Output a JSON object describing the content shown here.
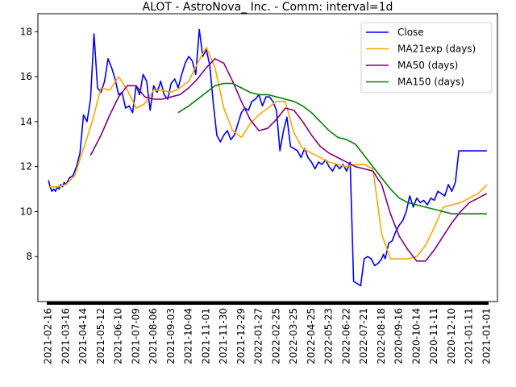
{
  "chart_data": {
    "type": "line",
    "title": "ALOT - AstroNova_ Inc. - Comm: interval=1d",
    "xlabel": "",
    "ylabel": "",
    "ylim": [
      6.0,
      18.8
    ],
    "yticks": [
      8,
      10,
      12,
      14,
      16,
      18
    ],
    "grid": false,
    "legend_position": "top-right",
    "x_labels": [
      "2021-02-16",
      "2021-03-16",
      "2021-04-14",
      "2021-05-12",
      "2021-06-10",
      "2021-07-09",
      "2021-08-06",
      "2021-09-03",
      "2021-10-04",
      "2021-11-01",
      "2021-11-30",
      "2021-12-29",
      "2022-01-27",
      "2022-02-25",
      "2022-03-25",
      "2022-04-25",
      "2022-05-23",
      "2022-06-22",
      "2022-07-21",
      "2022-08-18",
      "2020-09-16",
      "2020-10-14",
      "2020-11-11",
      "2020-12-10",
      "2021-01-11",
      "2021-01-01"
    ],
    "xlim": [
      -0.6,
      25.6
    ],
    "series": [
      {
        "name": "Close",
        "color": "#0000ff",
        "x": [
          0,
          0.1,
          0.2,
          0.3,
          0.4,
          0.5,
          0.6,
          0.7,
          0.8,
          0.9,
          1.0,
          1.2,
          1.4,
          1.6,
          1.8,
          2.0,
          2.2,
          2.4,
          2.6,
          2.8,
          3.0,
          3.2,
          3.4,
          3.6,
          3.8,
          4.0,
          4.2,
          4.4,
          4.6,
          4.8,
          5.0,
          5.2,
          5.4,
          5.6,
          5.8,
          6.0,
          6.2,
          6.4,
          6.6,
          6.8,
          7.0,
          7.2,
          7.4,
          7.6,
          7.8,
          8.0,
          8.2,
          8.4,
          8.6,
          8.8,
          9.0,
          9.2,
          9.4,
          9.6,
          9.8,
          10.0,
          10.2,
          10.4,
          10.6,
          10.8,
          11.0,
          11.2,
          11.4,
          11.6,
          11.8,
          12.0,
          12.2,
          12.4,
          12.6,
          12.8,
          13.0,
          13.2,
          13.4,
          13.6,
          13.8,
          14.0,
          14.2,
          14.4,
          14.6,
          14.8,
          15.0,
          15.2,
          15.4,
          15.6,
          15.8,
          16.0,
          16.2,
          16.4,
          16.6,
          16.8,
          17.0,
          17.2,
          17.4,
          17.6,
          17.8,
          18.0,
          18.2,
          18.4,
          18.6,
          18.8,
          19.0,
          19.1,
          19.2,
          19.4,
          19.6,
          19.8,
          20.0,
          20.2,
          20.4,
          20.6,
          20.8,
          21.0,
          21.2,
          21.4,
          21.6,
          21.8,
          22.0,
          22.2,
          22.4,
          22.6,
          22.8,
          23.0,
          23.2,
          23.4,
          23.6,
          23.8,
          24.0,
          24.2,
          24.4,
          24.6,
          24.8,
          25.0
        ],
        "y": [
          11.4,
          11.1,
          10.9,
          11.0,
          10.9,
          11.1,
          11.0,
          11.2,
          11.1,
          11.3,
          11.2,
          11.5,
          11.6,
          12.0,
          12.6,
          14.3,
          14.0,
          15.0,
          17.9,
          15.5,
          15.3,
          15.8,
          16.8,
          16.4,
          15.9,
          15.2,
          15.3,
          14.6,
          14.7,
          14.4,
          15.6,
          15.2,
          16.1,
          15.8,
          14.5,
          15.6,
          15.3,
          15.8,
          15.2,
          15.0,
          15.7,
          15.9,
          15.5,
          16.1,
          16.6,
          16.9,
          16.7,
          16.1,
          18.1,
          16.9,
          17.2,
          16.5,
          14.8,
          13.4,
          13.1,
          13.4,
          13.6,
          13.2,
          13.4,
          13.9,
          14.4,
          14.6,
          14.5,
          14.9,
          15.0,
          15.2,
          14.7,
          15.1,
          15.1,
          14.9,
          14.5,
          12.7,
          13.6,
          14.2,
          12.9,
          12.8,
          12.7,
          12.4,
          12.8,
          12.4,
          12.2,
          11.9,
          12.2,
          12.1,
          12.3,
          12.0,
          11.8,
          12.1,
          11.9,
          12.1,
          11.8,
          12.2,
          6.9,
          6.8,
          6.7,
          7.9,
          8.0,
          7.9,
          7.6,
          7.7,
          7.9,
          8.1,
          7.9,
          8.6,
          8.7,
          9.1,
          9.4,
          9.6,
          10.0,
          10.7,
          10.2,
          10.6,
          10.4,
          10.5,
          10.3,
          10.6,
          10.5,
          10.9,
          10.8,
          10.7,
          11.2,
          10.9,
          11.3,
          12.7,
          12.7,
          12.7,
          12.7,
          12.7,
          12.7,
          12.7,
          12.7,
          12.7
        ]
      },
      {
        "name": "MA21exp (days)",
        "color": "#ffa500",
        "x": [
          0,
          0.5,
          1.0,
          1.5,
          2.0,
          2.5,
          3.0,
          3.5,
          4.0,
          4.5,
          5.0,
          5.5,
          6.0,
          6.5,
          7.0,
          7.5,
          8.0,
          8.5,
          9.0,
          9.5,
          10.0,
          10.5,
          11.0,
          11.5,
          12.0,
          12.5,
          13.0,
          13.5,
          14.0,
          14.5,
          15.0,
          15.5,
          16.0,
          16.5,
          17.0,
          17.5,
          18.0,
          18.5,
          19.0,
          19.5,
          20.0,
          20.5,
          21.0,
          21.5,
          22.0,
          22.5,
          23.0,
          23.5,
          24.0,
          24.5,
          25.0
        ],
        "y": [
          11.1,
          11.1,
          11.2,
          11.6,
          12.8,
          14.0,
          15.5,
          15.4,
          16.0,
          15.4,
          14.6,
          14.8,
          15.4,
          15.4,
          15.3,
          15.5,
          15.8,
          16.6,
          17.3,
          16.4,
          14.6,
          13.6,
          13.3,
          13.9,
          14.3,
          14.6,
          14.9,
          14.9,
          13.5,
          12.8,
          12.6,
          12.4,
          12.2,
          12.1,
          12.0,
          12.1,
          12.1,
          11.9,
          9.0,
          7.9,
          7.9,
          7.9,
          8.0,
          8.5,
          9.3,
          10.2,
          10.3,
          10.4,
          10.6,
          10.8,
          11.2
        ]
      },
      {
        "name": "MA50 (days)",
        "color": "#800080",
        "x": [
          2.4,
          3.0,
          3.5,
          4.0,
          4.5,
          5.0,
          5.5,
          6.0,
          6.5,
          7.0,
          7.5,
          8.0,
          8.5,
          9.0,
          9.5,
          10.0,
          10.5,
          11.0,
          11.5,
          12.0,
          12.5,
          13.0,
          13.5,
          14.0,
          14.5,
          15.0,
          15.5,
          16.0,
          16.5,
          17.0,
          17.5,
          18.0,
          18.5,
          19.0,
          19.5,
          20.0,
          20.5,
          21.0,
          21.5,
          22.0,
          22.5,
          23.0,
          23.5,
          24.0,
          24.5,
          25.0
        ],
        "y": [
          12.5,
          13.4,
          14.3,
          15.1,
          15.6,
          15.6,
          15.1,
          15.0,
          15.0,
          15.1,
          15.2,
          15.5,
          15.9,
          16.4,
          16.8,
          16.6,
          15.8,
          14.9,
          14.1,
          13.6,
          13.7,
          14.1,
          14.6,
          14.5,
          14.0,
          13.4,
          12.9,
          12.6,
          12.4,
          12.2,
          12.0,
          11.9,
          11.8,
          11.2,
          9.9,
          8.9,
          8.3,
          7.8,
          7.8,
          8.3,
          8.9,
          9.5,
          10.0,
          10.4,
          10.6,
          10.8
        ]
      },
      {
        "name": "MA150 (days)",
        "color": "#008000",
        "x": [
          7.4,
          8.0,
          8.5,
          9.0,
          9.5,
          10.0,
          10.5,
          11.0,
          11.5,
          12.0,
          12.5,
          13.0,
          13.5,
          14.0,
          14.5,
          15.0,
          15.5,
          16.0,
          16.5,
          17.0,
          17.5,
          18.0,
          18.5,
          19.0,
          19.5,
          20.0,
          20.5,
          21.0,
          21.5,
          22.0,
          22.5,
          23.0,
          23.5,
          24.0,
          24.5,
          25.0
        ],
        "y": [
          14.4,
          14.7,
          15.0,
          15.3,
          15.6,
          15.7,
          15.7,
          15.5,
          15.3,
          15.2,
          15.2,
          15.1,
          15.0,
          14.9,
          14.7,
          14.4,
          14.0,
          13.6,
          13.3,
          13.2,
          13.0,
          12.5,
          12.0,
          11.5,
          11.0,
          10.6,
          10.4,
          10.3,
          10.2,
          10.1,
          10.0,
          9.9,
          9.9,
          9.9,
          9.9,
          9.9
        ]
      }
    ]
  }
}
